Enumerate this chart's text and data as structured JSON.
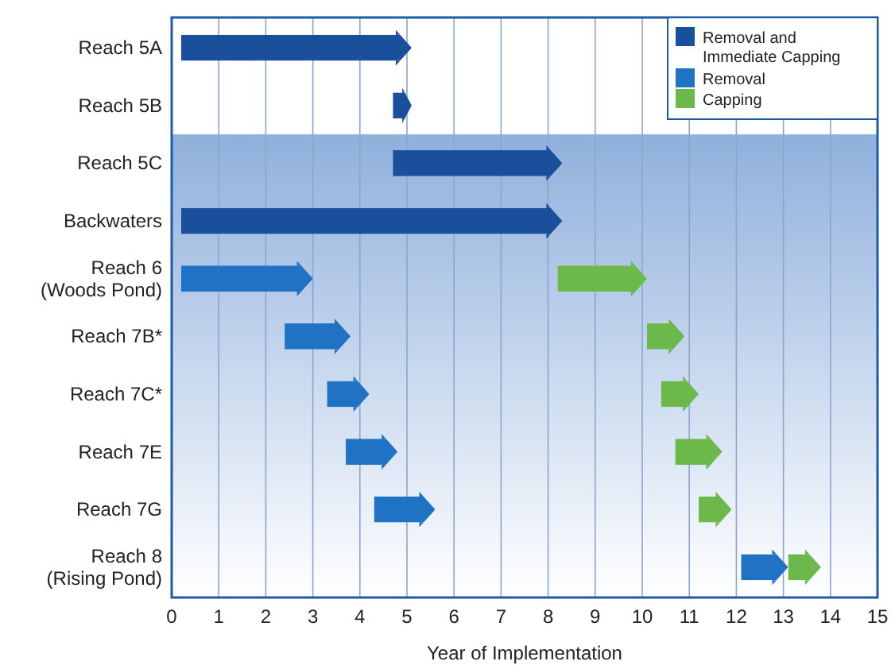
{
  "chart_data": {
    "type": "bar",
    "orientation": "horizontal",
    "xlabel": "Year of Implementation",
    "categories": [
      "Reach 5A",
      "Reach 5B",
      "Reach 5C",
      "Backwaters",
      "Reach 6\n(Woods Pond)",
      "Reach 7B*",
      "Reach 7C*",
      "Reach 7E",
      "Reach 7G",
      "Reach 8\n(Rising Pond)"
    ],
    "series": [
      {
        "name": "Removal and Immediate Capping",
        "color": "#1a4f9c",
        "base": [
          0.2,
          4.7,
          4.7,
          0.2,
          null,
          null,
          null,
          null,
          null,
          null
        ],
        "values": [
          4.9,
          0.4,
          3.6,
          8.1,
          null,
          null,
          null,
          null,
          null,
          null
        ]
      },
      {
        "name": "Removal",
        "color": "#1f72c4",
        "base": [
          null,
          null,
          null,
          null,
          0.2,
          2.4,
          3.3,
          3.7,
          4.3,
          12.1
        ],
        "values": [
          null,
          null,
          null,
          null,
          2.8,
          1.4,
          0.9,
          1.1,
          1.3,
          1.0
        ]
      },
      {
        "name": "Capping",
        "color": "#6cb84a",
        "base": [
          null,
          null,
          null,
          null,
          8.2,
          10.1,
          10.4,
          10.7,
          11.2,
          13.1
        ],
        "values": [
          null,
          null,
          null,
          null,
          1.9,
          0.8,
          0.8,
          1.0,
          0.7,
          0.7
        ]
      }
    ],
    "xlim": [
      0,
      15
    ],
    "xticks": [
      0,
      1,
      2,
      3,
      4,
      5,
      6,
      7,
      8,
      9,
      10,
      11,
      12,
      13,
      14,
      15
    ],
    "bands": [
      {
        "axis": "y",
        "from": "Reach 5C",
        "to": "Reach 8\n(Rising Pond)",
        "color": "#8fb0dc"
      }
    ],
    "grid": "x",
    "legend": "top right"
  }
}
